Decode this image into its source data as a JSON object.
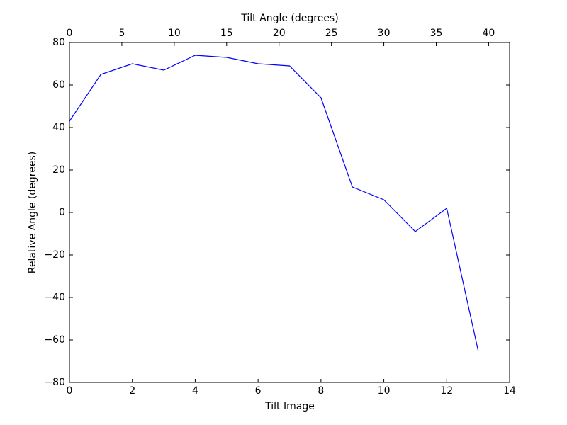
{
  "chart_data": {
    "type": "line",
    "xlabel": "Tilt Image",
    "ylabel": "Relative Angle (degrees)",
    "x2label": "Tilt Angle (degrees)",
    "x": [
      0,
      1,
      2,
      3,
      4,
      5,
      6,
      7,
      8,
      9,
      10,
      11,
      12,
      13
    ],
    "series": [
      {
        "color": "#0000ff",
        "values": [
          43,
          65,
          70,
          67,
          74,
          73,
          70,
          69,
          54,
          12,
          6,
          -9,
          2,
          -65
        ]
      }
    ],
    "xlim": [
      0,
      14
    ],
    "xticks": [
      0,
      2,
      4,
      6,
      8,
      10,
      12,
      14
    ],
    "x2lim": [
      0,
      42
    ],
    "x2ticks": [
      0,
      5,
      10,
      15,
      20,
      25,
      30,
      35,
      40
    ],
    "ylim": [
      -80,
      80
    ],
    "yticks": [
      {
        "value": -80,
        "label": "−80"
      },
      {
        "value": -60,
        "label": "−60"
      },
      {
        "value": -40,
        "label": "−40"
      },
      {
        "value": -20,
        "label": "−20"
      },
      0,
      20,
      40,
      60,
      80
    ]
  }
}
